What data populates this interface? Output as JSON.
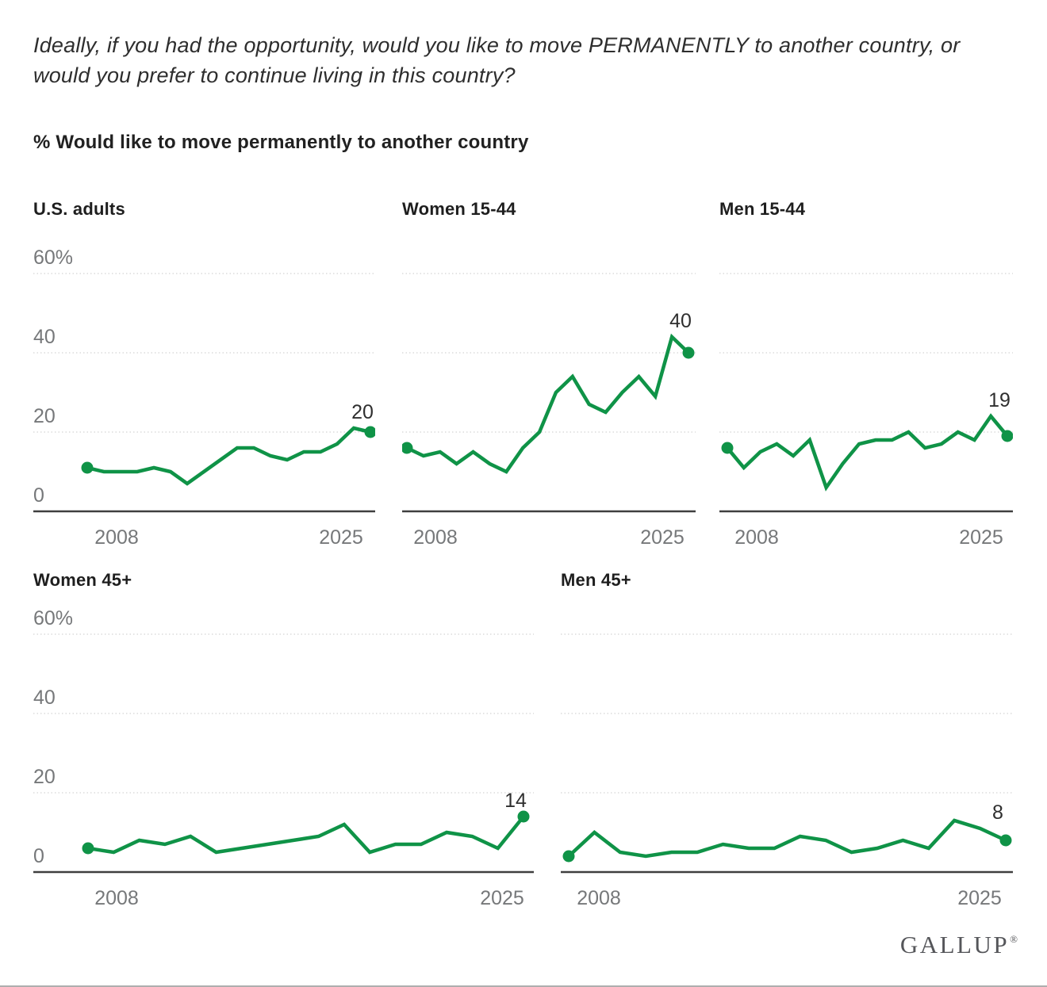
{
  "page": {
    "question": "Ideally, if you had the opportunity, would you like to move PERMANENTLY to another country, or would you prefer to continue living in this country?",
    "subtitle": "% Would like to move permanently to another country",
    "logo": "GALLUP",
    "logo_mark": "®"
  },
  "colors": {
    "line": "#0f9347",
    "grid": "#dcdcdc",
    "axis": "#3f3f3f",
    "tick_label": "#76787a",
    "value_label": "#2f2f2f"
  },
  "chart_data": {
    "type": "line",
    "layout": "small-multiples",
    "years": [
      2007,
      2008,
      2009,
      2010,
      2011,
      2012,
      2013,
      2014,
      2015,
      2016,
      2017,
      2018,
      2019,
      2021,
      2022,
      2023,
      2024,
      2025
    ],
    "ylim": [
      0,
      60
    ],
    "y_tick_labels": [
      "60%",
      "40",
      "20",
      "0"
    ],
    "x_tick_labels": [
      "2008",
      "2025"
    ],
    "grid": "horizontal",
    "legend": "none",
    "series": [
      {
        "name": "U.S. adults",
        "end_label": "20",
        "values": [
          11,
          10,
          10,
          10,
          11,
          10,
          7,
          10,
          13,
          16,
          16,
          14,
          13,
          15,
          15,
          17,
          21,
          20
        ]
      },
      {
        "name": "Women 15-44",
        "end_label": "40",
        "values": [
          16,
          14,
          15,
          12,
          15,
          12,
          10,
          16,
          20,
          30,
          34,
          27,
          25,
          30,
          34,
          29,
          44,
          40
        ]
      },
      {
        "name": "Men 15-44",
        "end_label": "19",
        "values": [
          16,
          11,
          15,
          17,
          14,
          18,
          6,
          12,
          17,
          18,
          18,
          20,
          16,
          17,
          20,
          18,
          24,
          19
        ]
      },
      {
        "name": "Women 45+",
        "end_label": "14",
        "values": [
          6,
          5,
          8,
          7,
          9,
          5,
          6,
          7,
          8,
          9,
          12,
          5,
          7,
          7,
          10,
          9,
          6,
          14
        ]
      },
      {
        "name": "Men 45+",
        "end_label": "8",
        "values": [
          4,
          10,
          5,
          4,
          5,
          5,
          7,
          6,
          6,
          9,
          8,
          5,
          6,
          8,
          6,
          13,
          11,
          8
        ]
      }
    ]
  }
}
